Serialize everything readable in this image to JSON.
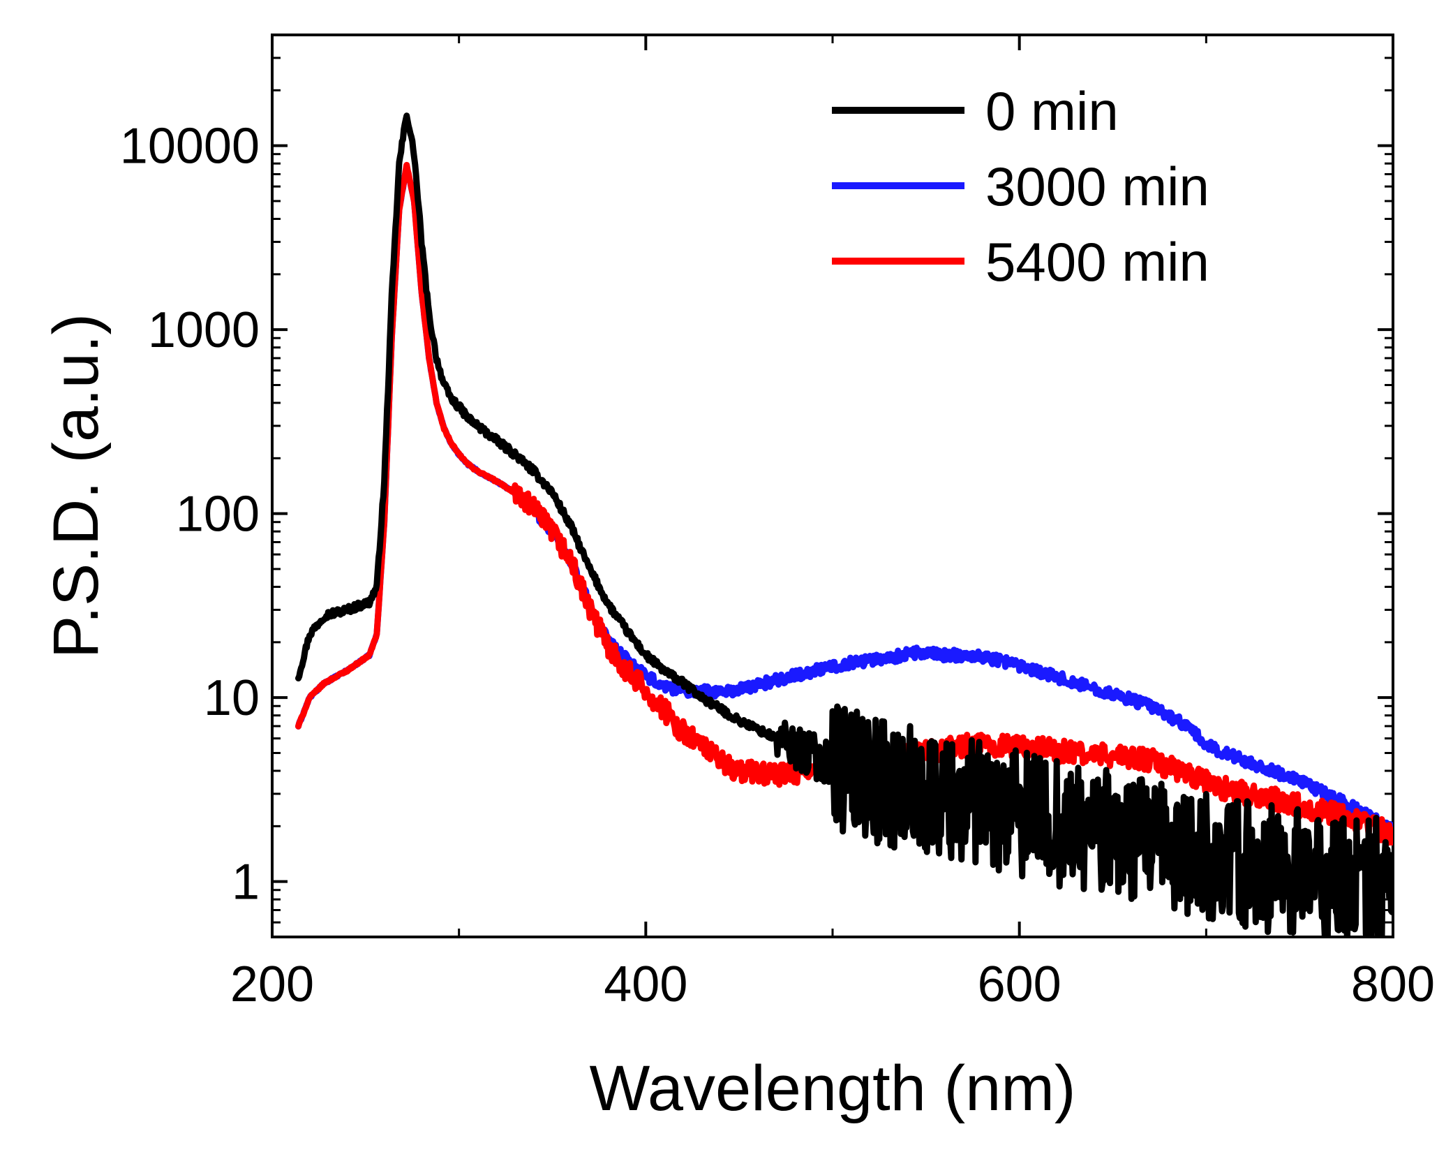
{
  "chart_data": {
    "type": "line",
    "title": "",
    "xlabel": "Wavelength (nm)",
    "ylabel": "P.S.D. (a.u.)",
    "xlim": [
      200,
      800
    ],
    "ylim": [
      0.5,
      40000
    ],
    "yscale": "log",
    "grid": false,
    "legend_position": "top-right",
    "x_ticks": [
      {
        "value": 200,
        "label": "200"
      },
      {
        "value": 400,
        "label": "400"
      },
      {
        "value": 600,
        "label": "600"
      },
      {
        "value": 800,
        "label": "800"
      }
    ],
    "y_ticks": [
      {
        "value": 1,
        "label": "1"
      },
      {
        "value": 10,
        "label": "10"
      },
      {
        "value": 100,
        "label": "100"
      },
      {
        "value": 1000,
        "label": "1000"
      },
      {
        "value": 10000,
        "label": "10000"
      }
    ],
    "series": [
      {
        "name": "0 min",
        "color": "#000000",
        "noise": 0.35,
        "x": [
          214,
          220,
          228,
          240,
          252,
          256,
          260,
          264,
          268,
          272,
          276,
          280,
          284,
          288,
          292,
          296,
          300,
          305,
          310,
          320,
          330,
          340,
          350,
          360,
          370,
          380,
          390,
          400,
          410,
          420,
          430,
          450,
          470,
          490,
          510,
          530,
          550,
          570,
          590,
          610,
          630,
          650,
          670,
          690,
          710,
          730,
          750,
          770,
          790,
          800
        ],
        "y": [
          13,
          22,
          28,
          30,
          33,
          40,
          150,
          1500,
          8000,
          15000,
          9000,
          3000,
          1200,
          700,
          500,
          420,
          380,
          330,
          300,
          250,
          210,
          170,
          130,
          85,
          50,
          32,
          23,
          17,
          14,
          12,
          10,
          7.5,
          6,
          4.8,
          4,
          3.4,
          3,
          2.7,
          2.4,
          2.2,
          2,
          1.8,
          1.6,
          1.4,
          1.3,
          1.2,
          1.1,
          1.0,
          1.0,
          1.0
        ]
      },
      {
        "name": "3000 min",
        "color": "#1a1aff",
        "noise": 0.03,
        "x": [
          214,
          220,
          228,
          240,
          252,
          256,
          260,
          264,
          268,
          272,
          276,
          280,
          284,
          288,
          292,
          296,
          300,
          305,
          310,
          320,
          330,
          340,
          350,
          360,
          370,
          380,
          390,
          400,
          410,
          420,
          430,
          440,
          450,
          470,
          490,
          510,
          530,
          545,
          560,
          575,
          590,
          610,
          630,
          650,
          670,
          690,
          700,
          710,
          730,
          750,
          770,
          790,
          800
        ],
        "y": [
          7,
          10,
          12,
          14,
          17,
          22,
          90,
          900,
          4500,
          7800,
          5000,
          1600,
          700,
          400,
          290,
          240,
          210,
          185,
          170,
          150,
          130,
          105,
          80,
          55,
          32,
          20,
          16,
          13,
          11.5,
          11,
          10.8,
          10.8,
          11,
          12.5,
          14,
          15.5,
          16.5,
          17.5,
          17,
          17,
          16,
          14,
          12,
          10.5,
          9,
          7,
          5.5,
          5,
          4.2,
          3.5,
          2.8,
          2.2,
          1.9
        ]
      },
      {
        "name": "5400 min",
        "color": "#ff0000",
        "noise": 0.06,
        "x": [
          214,
          220,
          228,
          240,
          252,
          256,
          260,
          264,
          268,
          272,
          276,
          280,
          284,
          288,
          292,
          296,
          300,
          305,
          310,
          320,
          330,
          340,
          350,
          360,
          370,
          380,
          390,
          400,
          410,
          420,
          430,
          440,
          450,
          470,
          490,
          510,
          530,
          550,
          570,
          590,
          610,
          630,
          650,
          670,
          690,
          710,
          730,
          750,
          770,
          790,
          800
        ],
        "y": [
          7,
          10,
          12,
          14,
          17,
          22,
          90,
          900,
          4500,
          7800,
          5000,
          1600,
          700,
          400,
          290,
          240,
          210,
          185,
          170,
          150,
          130,
          105,
          80,
          55,
          30,
          19,
          14,
          11,
          8.5,
          6.5,
          5.5,
          4.5,
          4,
          3.8,
          4,
          4.3,
          4.6,
          5,
          5.5,
          5.5,
          5.3,
          5,
          4.8,
          4.6,
          3.8,
          3.2,
          2.9,
          2.6,
          2.3,
          2.0,
          1.8
        ]
      }
    ]
  }
}
